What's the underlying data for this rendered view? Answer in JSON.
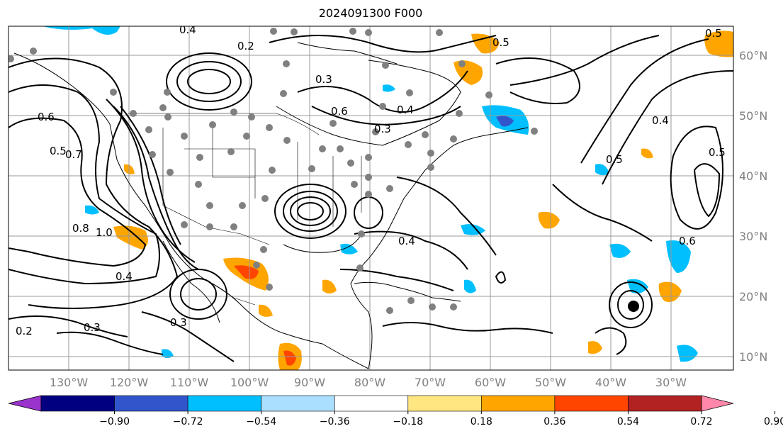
{
  "title": "2024091300 F000",
  "lon_labels": [
    "130°W",
    "120°W",
    "110°W",
    "100°W",
    "90°W",
    "80°W",
    "70°W",
    "60°W",
    "50°W",
    "40°W",
    "30°W"
  ],
  "lat_labels": [
    "60°N",
    "50°N",
    "40°N",
    "30°N",
    "20°N",
    "10°N"
  ],
  "colorbar": {
    "ticks": [
      "−0.90",
      "−0.72",
      "−0.54",
      "−0.36",
      "−0.18",
      "0.18",
      "0.36",
      "0.54",
      "0.72",
      "0.90"
    ],
    "colors": [
      "#9933cc",
      "#000080",
      "#3355cc",
      "#00bfff",
      "#aadfff",
      "#ffffff",
      "#ffe680",
      "#ffa500",
      "#ff4500",
      "#b22222",
      "#ff88aa"
    ]
  },
  "contour_labels": [
    "0.4",
    "0.2",
    "0.3",
    "0.5",
    "0.6",
    "0.8",
    "0.7",
    "1.0",
    "0.2",
    "0.3",
    "0.4",
    "0.5",
    "0.6",
    "0.3",
    "0.4",
    "0.4",
    "0.5",
    "0.6",
    "0.4",
    "0.5",
    "0.3",
    "0.5"
  ]
}
